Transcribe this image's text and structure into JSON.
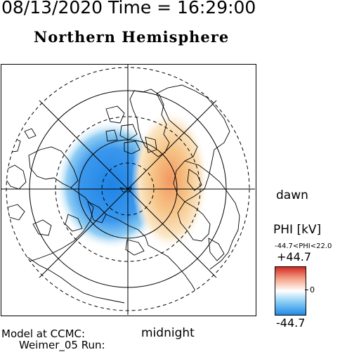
{
  "header": {
    "datetime": "08/13/2020 Time = 16:29:00",
    "hemisphere": "Northern Hemisphere"
  },
  "map": {
    "left_label": "dawn",
    "bottom_label": "midnight"
  },
  "colorbar": {
    "label": "PHI [kV]",
    "range_text": "-44.7<PHI<22.0",
    "max": "+44.7",
    "zero": "0",
    "min": "-44.7",
    "colors": {
      "positive": "#d42a24",
      "neutral": "#ffffff",
      "negative": "#1f8be8"
    }
  },
  "footer": {
    "model_label": "Model at CCMC:",
    "run_label": "Weimer_05 Run:"
  }
}
